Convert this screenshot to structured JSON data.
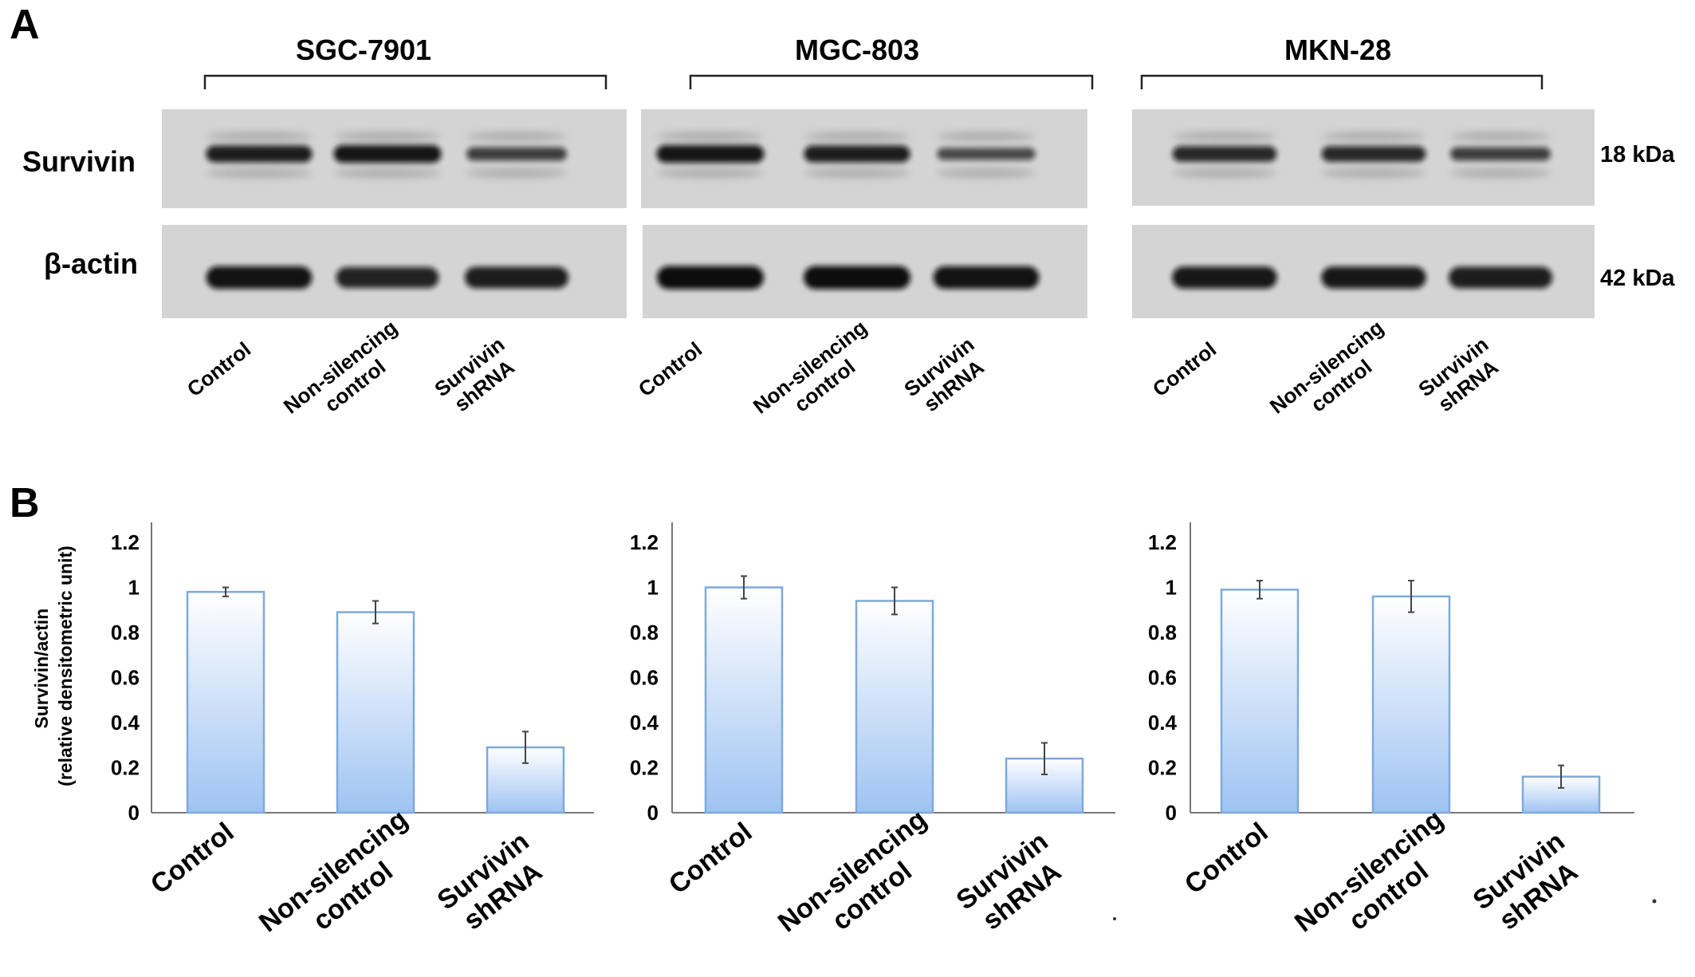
{
  "panel_a": {
    "letter": "A",
    "cell_lines": [
      "SGC-7901",
      "MGC-803",
      "MKN-28"
    ],
    "rows": [
      {
        "label": "Survivin",
        "size": "18 kDa"
      },
      {
        "label": "β-actin",
        "size": "42 kDa"
      }
    ],
    "lanes": [
      [
        "Control"
      ],
      [
        "Non-silencing",
        "control"
      ],
      [
        "Survivin",
        "shRNA"
      ]
    ],
    "band_intensity": {
      "survivin": [
        [
          0.85,
          0.92,
          0.55
        ],
        [
          0.92,
          0.85,
          0.45
        ],
        [
          0.75,
          0.75,
          0.55
        ]
      ],
      "actin": [
        [
          0.95,
          0.8,
          0.85
        ],
        [
          1.0,
          1.0,
          0.95
        ],
        [
          0.9,
          0.9,
          0.85
        ]
      ]
    }
  },
  "panel_b": {
    "letter": "B",
    "ylabel_lines": [
      "Survivin/actin",
      "(relative densitometric unit)"
    ]
  },
  "chart_data": [
    {
      "type": "bar",
      "categories": [
        "Control",
        "Non-silencing control",
        "Survivin shRNA"
      ],
      "category_lines": [
        [
          "Control"
        ],
        [
          "Non-silencing",
          "control"
        ],
        [
          "Survivin",
          "shRNA"
        ]
      ],
      "values": [
        0.98,
        0.89,
        0.29
      ],
      "errors": [
        0.02,
        0.05,
        0.07
      ],
      "ylim": [
        0,
        1.2
      ],
      "yticks": [
        "0",
        "0.2",
        "0.4",
        "0.6",
        "0.8",
        "1",
        "1.2"
      ],
      "ylabel": "Survivin/actin (relative densitometric unit)",
      "bar_color_top": "#ffffff",
      "bar_color_bottom": "#9ec3f2",
      "bar_edge": "#7fa9dc"
    },
    {
      "type": "bar",
      "categories": [
        "Control",
        "Non-silencing control",
        "Survivin shRNA"
      ],
      "category_lines": [
        [
          "Control"
        ],
        [
          "Non-silencing",
          "control"
        ],
        [
          "Survivin",
          "shRNA"
        ]
      ],
      "values": [
        1.0,
        0.94,
        0.24
      ],
      "errors": [
        0.05,
        0.06,
        0.07
      ],
      "ylim": [
        0,
        1.2
      ],
      "yticks": [
        "0",
        "0.2",
        "0.4",
        "0.6",
        "0.8",
        "1",
        "1.2"
      ],
      "bar_color_top": "#ffffff",
      "bar_color_bottom": "#9ec3f2",
      "bar_edge": "#7fa9dc"
    },
    {
      "type": "bar",
      "categories": [
        "Control",
        "Non-silencing control",
        "Survivin shRNA"
      ],
      "category_lines": [
        [
          "Control"
        ],
        [
          "Non-silencing",
          "control"
        ],
        [
          "Survivin",
          "shRNA"
        ]
      ],
      "values": [
        0.99,
        0.96,
        0.16
      ],
      "errors": [
        0.04,
        0.07,
        0.05
      ],
      "ylim": [
        0,
        1.2
      ],
      "yticks": [
        "0",
        "0.2",
        "0.4",
        "0.6",
        "0.8",
        "1",
        "1.2"
      ],
      "bar_color_top": "#ffffff",
      "bar_color_bottom": "#9ec3f2",
      "bar_edge": "#7fa9dc"
    }
  ]
}
